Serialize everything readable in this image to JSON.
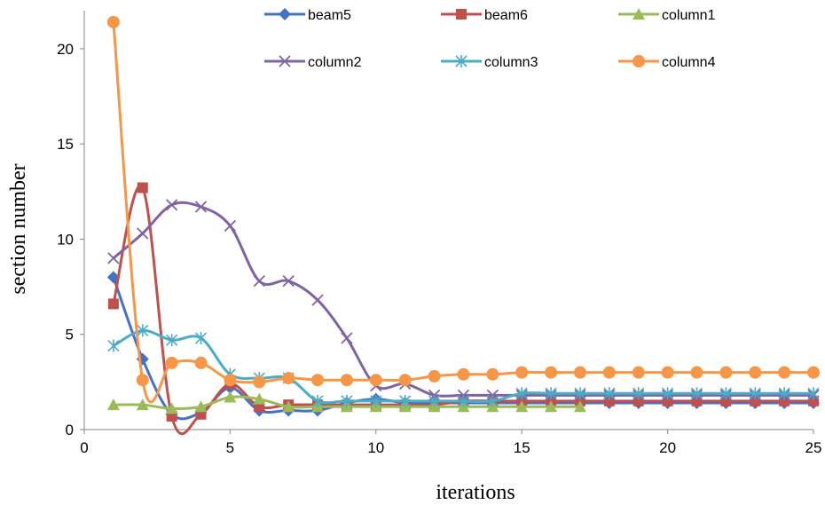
{
  "chart_data": {
    "type": "line",
    "title": "",
    "xlabel": "iterations",
    "ylabel": "section number",
    "xlim": [
      0,
      25
    ],
    "ylim": [
      0,
      22
    ],
    "xticks": [
      0,
      5,
      10,
      15,
      20,
      25
    ],
    "yticks": [
      0,
      5,
      10,
      15,
      20
    ],
    "grid": false,
    "legend_position": "top",
    "series": [
      {
        "name": "beam5",
        "color": "#4472C4",
        "marker": "diamond",
        "x": [
          1,
          2,
          3,
          4,
          5,
          6,
          7,
          8,
          9,
          10,
          11,
          12,
          13,
          14,
          15,
          16,
          17,
          18,
          19,
          20,
          21,
          22,
          23,
          24,
          25
        ],
        "y": [
          8.0,
          3.7,
          0.8,
          0.9,
          2.2,
          1.0,
          1.0,
          1.0,
          1.4,
          1.6,
          1.4,
          1.4,
          1.4,
          1.4,
          1.4,
          1.4,
          1.4,
          1.4,
          1.4,
          1.4,
          1.4,
          1.4,
          1.4,
          1.4,
          1.4
        ]
      },
      {
        "name": "beam6",
        "color": "#C0504D",
        "marker": "square",
        "x": [
          1,
          2,
          3,
          4,
          5,
          6,
          7,
          8,
          9,
          10,
          11,
          12,
          13,
          14,
          15,
          16,
          17,
          18,
          19,
          20,
          21,
          22,
          23,
          24,
          25
        ],
        "y": [
          6.6,
          12.7,
          0.7,
          0.8,
          2.4,
          1.2,
          1.3,
          1.3,
          1.3,
          1.3,
          1.3,
          1.3,
          1.5,
          1.5,
          1.5,
          1.5,
          1.5,
          1.5,
          1.5,
          1.5,
          1.5,
          1.5,
          1.5,
          1.5,
          1.5
        ]
      },
      {
        "name": "column1",
        "color": "#9BBB59",
        "marker": "triangle",
        "x": [
          1,
          2,
          3,
          4,
          5,
          6,
          7,
          8,
          9,
          10,
          11,
          12,
          13,
          14,
          15,
          16,
          17
        ],
        "y": [
          1.3,
          1.3,
          1.1,
          1.2,
          1.7,
          1.6,
          1.2,
          1.2,
          1.2,
          1.2,
          1.2,
          1.2,
          1.2,
          1.2,
          1.2,
          1.2,
          1.2
        ]
      },
      {
        "name": "column2",
        "color": "#8064A2",
        "marker": "x",
        "x": [
          1,
          2,
          3,
          4,
          5,
          6,
          7,
          8,
          9,
          10,
          11,
          12,
          13,
          14,
          15,
          16,
          17,
          18,
          19,
          20,
          21,
          22,
          23,
          24,
          25
        ],
        "y": [
          9.0,
          10.3,
          11.8,
          11.7,
          10.7,
          7.8,
          7.8,
          6.8,
          4.8,
          2.3,
          2.4,
          1.8,
          1.8,
          1.8,
          1.8,
          1.8,
          1.8,
          1.8,
          1.8,
          1.8,
          1.8,
          1.8,
          1.8,
          1.8,
          1.8
        ]
      },
      {
        "name": "column3",
        "color": "#4BACC6",
        "marker": "star",
        "x": [
          1,
          2,
          3,
          4,
          5,
          6,
          7,
          8,
          9,
          10,
          11,
          12,
          13,
          14,
          15,
          16,
          17,
          18,
          19,
          20,
          21,
          22,
          23,
          24,
          25
        ],
        "y": [
          4.4,
          5.2,
          4.7,
          4.8,
          2.9,
          2.7,
          2.7,
          1.5,
          1.5,
          1.5,
          1.5,
          1.5,
          1.5,
          1.5,
          1.9,
          1.9,
          1.9,
          1.9,
          1.9,
          1.9,
          1.9,
          1.9,
          1.9,
          1.9,
          1.9
        ]
      },
      {
        "name": "column4",
        "color": "#F79646",
        "marker": "circle",
        "x": [
          1,
          2,
          3,
          4,
          5,
          6,
          7,
          8,
          9,
          10,
          11,
          12,
          13,
          14,
          15,
          16,
          17,
          18,
          19,
          20,
          21,
          22,
          23,
          24,
          25
        ],
        "y": [
          21.4,
          2.6,
          3.5,
          3.5,
          2.6,
          2.5,
          2.7,
          2.6,
          2.6,
          2.6,
          2.6,
          2.8,
          2.9,
          2.9,
          3.0,
          3.0,
          3.0,
          3.0,
          3.0,
          3.0,
          3.0,
          3.0,
          3.0,
          3.0,
          3.0
        ]
      }
    ]
  }
}
